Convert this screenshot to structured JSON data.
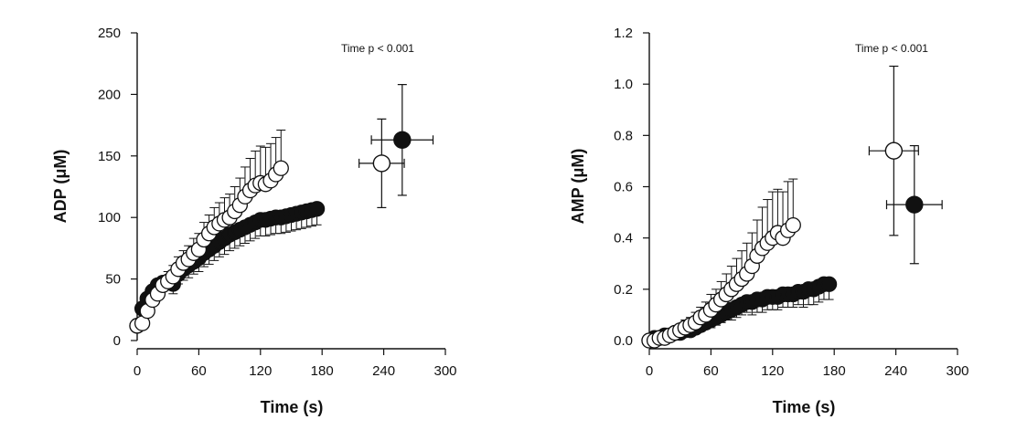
{
  "chart_data": [
    {
      "type": "scatter",
      "annotation": "Time p < 0.001",
      "xlabel": "Time (s)",
      "ylabel": "ADP (μM)",
      "xlim": [
        0,
        300
      ],
      "ylim": [
        0,
        250
      ],
      "x_ticks": [
        "0",
        "60",
        "120",
        "180",
        "240",
        "300"
      ],
      "y_ticks": [
        "0",
        "50",
        "100",
        "150",
        "200",
        "250"
      ],
      "series": [
        {
          "marker": "filled-circle",
          "color": "#111111",
          "x": [
            0,
            5,
            10,
            15,
            20,
            25,
            30,
            35,
            40,
            45,
            50,
            55,
            60,
            65,
            70,
            75,
            80,
            85,
            90,
            95,
            100,
            105,
            110,
            115,
            120,
            125,
            130,
            135,
            140,
            145,
            150,
            155,
            160,
            165,
            170,
            175
          ],
          "y": [
            12,
            26,
            34,
            40,
            45,
            47,
            48,
            46,
            54,
            58,
            61,
            64,
            67,
            71,
            74,
            77,
            80,
            83,
            86,
            88,
            90,
            92,
            94,
            96,
            98,
            98,
            99,
            100,
            100,
            101,
            102,
            103,
            104,
            105,
            106,
            107
          ],
          "err": [
            2,
            3,
            4,
            5,
            6,
            6,
            7,
            8,
            8,
            9,
            10,
            10,
            11,
            11,
            12,
            12,
            12,
            13,
            13,
            13,
            13,
            13,
            13,
            13,
            13,
            13,
            13,
            13,
            13,
            13,
            13,
            13,
            13,
            13,
            13,
            13
          ],
          "mean_point": {
            "x": 258,
            "y": 163,
            "xerr": 30,
            "yerr": 45
          }
        },
        {
          "marker": "open-circle",
          "color": "#111111",
          "x": [
            0,
            5,
            10,
            15,
            20,
            25,
            30,
            35,
            40,
            45,
            50,
            55,
            60,
            65,
            70,
            75,
            80,
            85,
            90,
            95,
            100,
            105,
            110,
            115,
            120,
            125,
            130,
            135,
            140
          ],
          "y": [
            12,
            14,
            24,
            33,
            38,
            45,
            48,
            52,
            58,
            63,
            66,
            71,
            74,
            82,
            87,
            92,
            95,
            98,
            100,
            105,
            110,
            117,
            122,
            126,
            128,
            127,
            130,
            135,
            140
          ],
          "err": [
            2,
            3,
            4,
            5,
            6,
            7,
            8,
            9,
            10,
            10,
            11,
            12,
            13,
            14,
            15,
            16,
            17,
            18,
            19,
            20,
            22,
            24,
            26,
            28,
            30,
            30,
            30,
            30,
            31
          ],
          "mean_point": {
            "x": 238,
            "y": 144,
            "xerr": 22,
            "yerr": 36
          }
        }
      ]
    },
    {
      "type": "scatter",
      "annotation": "Time p < 0.001",
      "xlabel": "Time (s)",
      "ylabel": "AMP (μM)",
      "xlim": [
        0,
        300
      ],
      "ylim": [
        0,
        1.2
      ],
      "x_ticks": [
        "0",
        "60",
        "120",
        "180",
        "240",
        "300"
      ],
      "y_ticks": [
        "0.0",
        "0.2",
        "0.4",
        "0.6",
        "0.8",
        "1.0",
        "1.2"
      ],
      "series": [
        {
          "marker": "filled-circle",
          "color": "#111111",
          "x": [
            0,
            5,
            10,
            15,
            20,
            25,
            30,
            35,
            40,
            45,
            50,
            55,
            60,
            65,
            70,
            75,
            80,
            85,
            90,
            95,
            100,
            105,
            110,
            115,
            120,
            125,
            130,
            135,
            140,
            145,
            150,
            155,
            160,
            165,
            170,
            175
          ],
          "y": [
            0.0,
            0.01,
            0.01,
            0.02,
            0.02,
            0.03,
            0.03,
            0.04,
            0.04,
            0.05,
            0.06,
            0.07,
            0.08,
            0.09,
            0.1,
            0.11,
            0.12,
            0.13,
            0.14,
            0.15,
            0.15,
            0.16,
            0.16,
            0.17,
            0.17,
            0.17,
            0.18,
            0.18,
            0.18,
            0.19,
            0.19,
            0.2,
            0.2,
            0.21,
            0.22,
            0.22
          ],
          "err": [
            0.0,
            0.0,
            0.01,
            0.01,
            0.01,
            0.01,
            0.01,
            0.01,
            0.02,
            0.02,
            0.02,
            0.02,
            0.03,
            0.03,
            0.03,
            0.03,
            0.04,
            0.04,
            0.04,
            0.04,
            0.05,
            0.05,
            0.05,
            0.05,
            0.05,
            0.05,
            0.05,
            0.05,
            0.05,
            0.05,
            0.06,
            0.06,
            0.06,
            0.06,
            0.06,
            0.06
          ],
          "mean_point": {
            "x": 258,
            "y": 0.53,
            "xerr": 27,
            "yerr": 0.23
          }
        },
        {
          "marker": "open-circle",
          "color": "#111111",
          "x": [
            0,
            5,
            10,
            15,
            20,
            25,
            30,
            35,
            40,
            45,
            50,
            55,
            60,
            65,
            70,
            75,
            80,
            85,
            90,
            95,
            100,
            105,
            110,
            115,
            120,
            125,
            130,
            135,
            140
          ],
          "y": [
            0.0,
            0.0,
            0.01,
            0.01,
            0.02,
            0.03,
            0.04,
            0.05,
            0.06,
            0.07,
            0.09,
            0.1,
            0.12,
            0.14,
            0.16,
            0.18,
            0.2,
            0.22,
            0.24,
            0.26,
            0.29,
            0.33,
            0.36,
            0.38,
            0.4,
            0.42,
            0.4,
            0.43,
            0.45
          ],
          "err": [
            0.0,
            0.01,
            0.01,
            0.01,
            0.02,
            0.02,
            0.02,
            0.03,
            0.03,
            0.04,
            0.04,
            0.05,
            0.06,
            0.06,
            0.07,
            0.08,
            0.09,
            0.1,
            0.11,
            0.12,
            0.13,
            0.14,
            0.16,
            0.17,
            0.18,
            0.17,
            0.18,
            0.19,
            0.18
          ],
          "mean_point": {
            "x": 238,
            "y": 0.74,
            "xerr": 24,
            "yerr": 0.33
          }
        }
      ]
    }
  ]
}
